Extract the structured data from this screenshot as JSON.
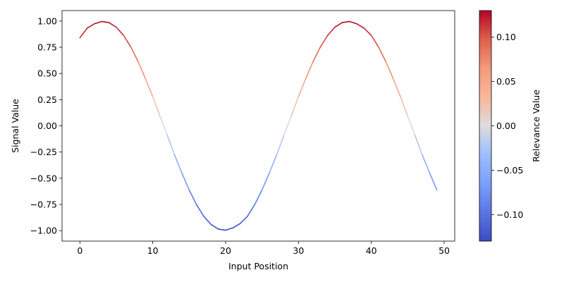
{
  "chart_data": {
    "type": "line",
    "title": "",
    "xlabel": "Input Position",
    "ylabel": "Signal Value",
    "xlim": [
      -2.45,
      51.45
    ],
    "ylim": [
      -1.1,
      1.1
    ],
    "xticks": [
      0,
      10,
      20,
      30,
      40,
      50
    ],
    "yticks": [
      1.0,
      0.75,
      0.5,
      0.25,
      0.0,
      -0.25,
      -0.5,
      -0.75,
      -1.0
    ],
    "xtick_labels": [
      "0",
      "10",
      "20",
      "30",
      "40",
      "50"
    ],
    "ytick_labels": [
      "1.00",
      "0.75",
      "0.50",
      "0.25",
      "0.00",
      "−0.25",
      "−0.50",
      "−0.75",
      "−1.00"
    ],
    "grid": false,
    "x": [
      0,
      1,
      2,
      3,
      4,
      5,
      6,
      7,
      8,
      9,
      10,
      11,
      12,
      13,
      14,
      15,
      16,
      17,
      18,
      19,
      20,
      21,
      22,
      23,
      24,
      25,
      26,
      27,
      28,
      29,
      30,
      31,
      32,
      33,
      34,
      35,
      36,
      37,
      38,
      39,
      40,
      41,
      42,
      43,
      44,
      45,
      46,
      47,
      48,
      49
    ],
    "series": [
      {
        "name": "signal",
        "color_by": "relevance",
        "values": [
          0.841,
          0.932,
          0.974,
          0.996,
          0.985,
          0.941,
          0.863,
          0.751,
          0.612,
          0.45,
          0.279,
          0.091,
          -0.091,
          -0.279,
          -0.45,
          -0.612,
          -0.751,
          -0.863,
          -0.941,
          -0.985,
          -0.996,
          -0.974,
          -0.932,
          -0.863,
          -0.751,
          -0.612,
          -0.45,
          -0.279,
          -0.091,
          0.091,
          0.279,
          0.45,
          0.612,
          0.751,
          0.863,
          0.941,
          0.985,
          0.996,
          0.974,
          0.932,
          0.863,
          0.751,
          0.612,
          0.45,
          0.279,
          0.091,
          -0.091,
          -0.279,
          -0.45,
          -0.612
        ]
      }
    ],
    "relevance": [
      0.1093,
      0.1211,
      0.1266,
      0.1295,
      0.1281,
      0.1223,
      0.1122,
      0.0976,
      0.0796,
      0.0585,
      0.0363,
      0.0118,
      -0.0118,
      -0.0363,
      -0.0585,
      -0.0796,
      -0.0976,
      -0.1122,
      -0.1223,
      -0.1281,
      -0.1295,
      -0.1266,
      -0.1211,
      -0.1122,
      -0.0976,
      -0.0796,
      -0.0585,
      -0.0363,
      -0.0118,
      0.0118,
      0.0363,
      0.0585,
      0.0796,
      0.0976,
      0.1122,
      0.1223,
      0.1281,
      0.1295,
      0.1266,
      0.1211,
      0.1122,
      0.0976,
      0.0796,
      0.0585,
      0.0363,
      0.0118,
      -0.0118,
      -0.0363,
      -0.0585,
      -0.0796
    ],
    "colorbar": {
      "label": "Relevance Value",
      "colormap": "coolwarm",
      "vmin": -0.13,
      "vmax": 0.13,
      "ticks": [
        0.1,
        0.05,
        0.0,
        -0.05,
        -0.1
      ],
      "tick_labels": [
        "0.10",
        "0.05",
        "0.00",
        "−0.05",
        "−0.10"
      ]
    }
  }
}
